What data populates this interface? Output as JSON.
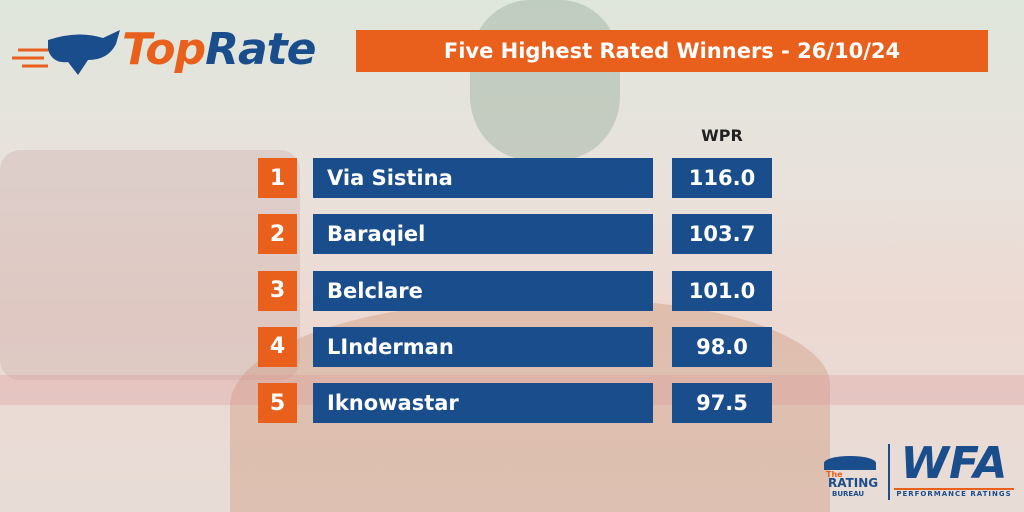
{
  "logo": {
    "part1": "Top",
    "part2": "Rate"
  },
  "title": "Five Highest Rated Winners - 26/10/24",
  "table": {
    "header": "WPR",
    "rows": [
      {
        "rank": 1,
        "name": "Via Sistina",
        "rating": "116.0"
      },
      {
        "rank": 2,
        "name": "Baraqiel",
        "rating": "103.7"
      },
      {
        "rank": 3,
        "name": "Belclare",
        "rating": "101.0"
      },
      {
        "rank": 4,
        "name": "LInderman",
        "rating": "98.0"
      },
      {
        "rank": 5,
        "name": "Iknowastar",
        "rating": "97.5"
      }
    ]
  },
  "footer": {
    "bureau_small": "The",
    "bureau": "RATING",
    "bureau_sub": "BUREAU",
    "wfa": "WFA",
    "wfa_sub": "PERFORMANCE RATINGS"
  }
}
